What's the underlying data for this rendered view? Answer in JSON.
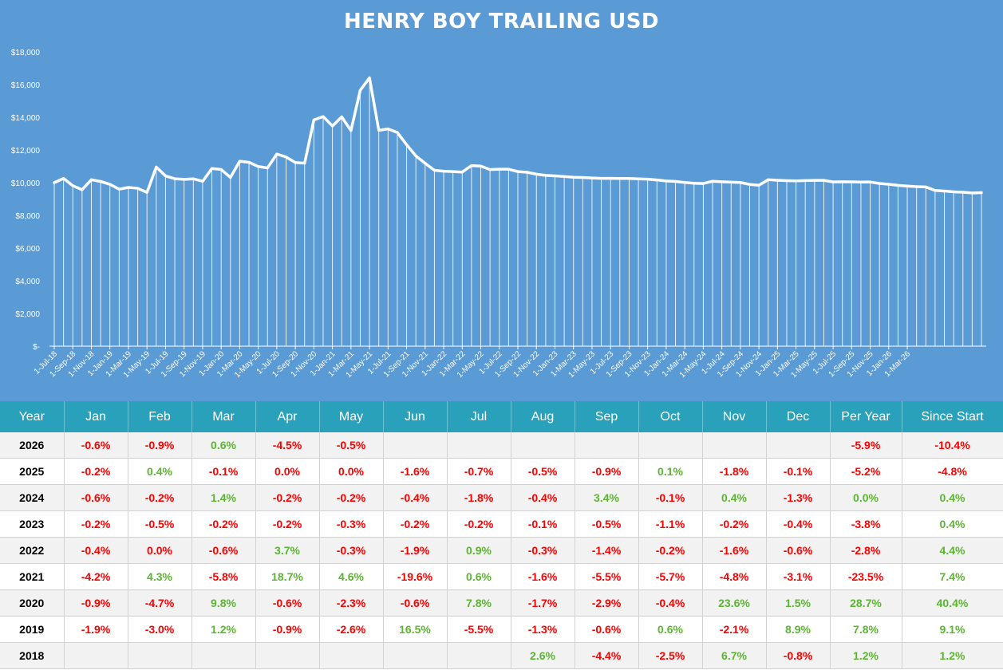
{
  "chart_data": {
    "type": "area",
    "title": "HENRY BOY TRAILING USD",
    "ylim": [
      0,
      18000
    ],
    "y_ticks": [
      "$-",
      "$2,000",
      "$4,000",
      "$6,000",
      "$8,000",
      "$10,000",
      "$12,000",
      "$14,000",
      "$16,000",
      "$18,000"
    ],
    "x_labels": [
      "1-Jul-18",
      "1-Sep-18",
      "1-Nov-18",
      "1-Jan-19",
      "1-Mar-19",
      "1-May-19",
      "1-Jul-19",
      "1-Sep-19",
      "1-Nov-19",
      "1-Jan-20",
      "1-Mar-20",
      "1-May-20",
      "1-Jul-20",
      "1-Sep-20",
      "1-Nov-20",
      "1-Jan-21",
      "1-Mar-21",
      "1-May-21",
      "1-Jul-21",
      "1-Sep-21",
      "1-Nov-21",
      "1-Jan-22",
      "1-Mar-22",
      "1-May-22",
      "1-Jul-22",
      "1-Sep-22",
      "1-Nov-22",
      "1-Jan-23",
      "1-Mar-23",
      "1-May-23",
      "1-Jul-23",
      "1-Sep-23",
      "1-Nov-23",
      "1-Jan-24",
      "1-Mar-24",
      "1-May-24",
      "1-Jul-24",
      "1-Sep-24",
      "1-Nov-24",
      "1-Jan-25",
      "1-Mar-25",
      "1-May-25",
      "1-Jul-25",
      "1-Sep-25",
      "1-Nov-25",
      "1-Jan-26",
      "1-Mar-26"
    ],
    "series": [
      {
        "values": [
          10000,
          10260,
          9813,
          9568,
          10180,
          10074,
          9898,
          9603,
          9709,
          9655,
          9404,
          10955,
          10411,
          10240,
          10201,
          10234,
          10080,
          10866,
          10807,
          10319,
          11312,
          11244,
          10986,
          10900,
          11749,
          11569,
          11232,
          11188,
          13833,
          14042,
          13466,
          14024,
          13182,
          15650,
          16412,
          13201,
          13285,
          13068,
          12321,
          11636,
          11183,
          10754,
          10699,
          10678,
          10648,
          11043,
          11011,
          10800,
          10822,
          10822,
          10677,
          10634,
          10518,
          10447,
          10416,
          10375,
          10327,
          10319,
          10286,
          10262,
          10265,
          10259,
          10259,
          10232,
          10212,
          10162,
          10104,
          10074,
          10014,
          9964,
          9947,
          10086,
          10052,
          10032,
          10012,
          9892,
          9843,
          10180,
          10149,
          10125,
          10108,
          10126,
          10141,
          10141,
          10044,
          10054,
          10049,
          10039,
          10040,
          9950,
          9902,
          9833,
          9792,
          9753,
          9735,
          9525,
          9488,
          9437,
          9416,
          9369,
          9390
        ]
      }
    ]
  },
  "table": {
    "headers": [
      "Year",
      "Jan",
      "Feb",
      "Mar",
      "Apr",
      "May",
      "Jun",
      "Jul",
      "Aug",
      "Sep",
      "Oct",
      "Nov",
      "Dec",
      "Per Year",
      "Since Start"
    ],
    "rows": [
      [
        "2026",
        "-0.6%",
        "-0.9%",
        "0.6%",
        "-4.5%",
        "-0.5%",
        "",
        "",
        "",
        "",
        "",
        "",
        "",
        "-5.9%",
        "-10.4%"
      ],
      [
        "2025",
        "-0.2%",
        "0.4%",
        "-0.1%",
        "0.0%",
        "0.0%",
        "-1.6%",
        "-0.7%",
        "-0.5%",
        "-0.9%",
        "0.1%",
        "-1.8%",
        "-0.1%",
        "-5.2%",
        "-4.8%"
      ],
      [
        "2024",
        "-0.6%",
        "-0.2%",
        "1.4%",
        "-0.2%",
        "-0.2%",
        "-0.4%",
        "-1.8%",
        "-0.4%",
        "3.4%",
        "-0.1%",
        "0.4%",
        "-1.3%",
        "0.0%",
        "0.4%"
      ],
      [
        "2023",
        "-0.2%",
        "-0.5%",
        "-0.2%",
        "-0.2%",
        "-0.3%",
        "-0.2%",
        "-0.2%",
        "-0.1%",
        "-0.5%",
        "-1.1%",
        "-0.2%",
        "-0.4%",
        "-3.8%",
        "0.4%"
      ],
      [
        "2022",
        "-0.4%",
        "0.0%",
        "-0.6%",
        "3.7%",
        "-0.3%",
        "-1.9%",
        "0.9%",
        "-0.3%",
        "-1.4%",
        "-0.2%",
        "-1.6%",
        "-0.6%",
        "-2.8%",
        "4.4%"
      ],
      [
        "2021",
        "-4.2%",
        "4.3%",
        "-5.8%",
        "18.7%",
        "4.6%",
        "-19.6%",
        "0.6%",
        "-1.6%",
        "-5.5%",
        "-5.7%",
        "-4.8%",
        "-3.1%",
        "-23.5%",
        "7.4%"
      ],
      [
        "2020",
        "-0.9%",
        "-4.7%",
        "9.8%",
        "-0.6%",
        "-2.3%",
        "-0.6%",
        "7.8%",
        "-1.7%",
        "-2.9%",
        "-0.4%",
        "23.6%",
        "1.5%",
        "28.7%",
        "40.4%"
      ],
      [
        "2019",
        "-1.9%",
        "-3.0%",
        "1.2%",
        "-0.9%",
        "-2.6%",
        "16.5%",
        "-5.5%",
        "-1.3%",
        "-0.6%",
        "0.6%",
        "-2.1%",
        "8.9%",
        "7.8%",
        "9.1%"
      ],
      [
        "2018",
        "",
        "",
        "",
        "",
        "",
        "",
        "",
        "2.6%",
        "-4.4%",
        "-2.5%",
        "6.7%",
        "-0.8%",
        "1.2%",
        "1.2%"
      ]
    ],
    "negative_color": "#ff0000",
    "positive_color": "#5cb531",
    "zero_positive_cells": [
      "2024.Per Year"
    ]
  },
  "colors": {
    "chart_bg": "#5b9bd5",
    "line": "#ffffff",
    "header_bg": "#2aa1bb"
  }
}
